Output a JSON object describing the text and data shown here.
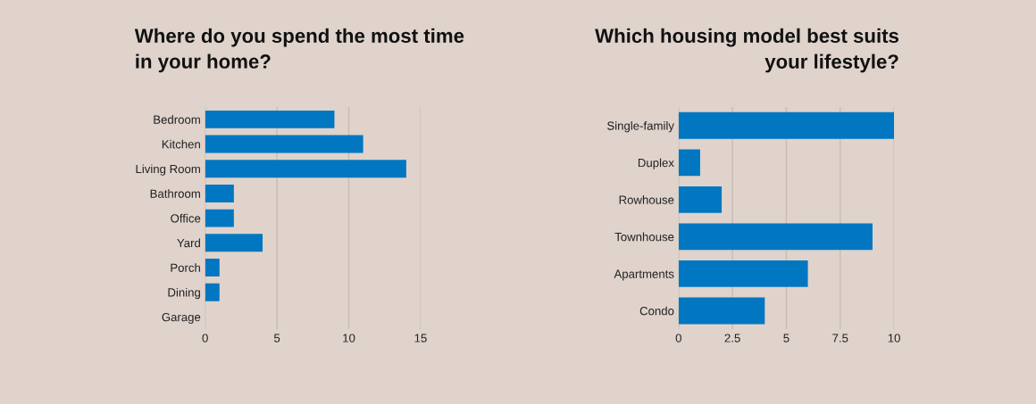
{
  "chart_data": [
    {
      "type": "bar",
      "orientation": "horizontal",
      "title": "Where do you spend the most time\nin your home?",
      "categories": [
        "Bedroom",
        "Kitchen",
        "Living Room",
        "Bathroom",
        "Office",
        "Yard",
        "Porch",
        "Dining",
        "Garage"
      ],
      "values": [
        9,
        11,
        14,
        2,
        2,
        4,
        1,
        1,
        0
      ],
      "color": "#0077c0",
      "xlim": [
        0,
        15
      ],
      "xticks": [
        0,
        5,
        10,
        15
      ],
      "grid": "x",
      "legend": false
    },
    {
      "type": "bar",
      "orientation": "horizontal",
      "title": "Which housing model best suits\nyour lifestyle?",
      "categories": [
        "Single-family",
        "Duplex",
        "Rowhouse",
        "Townhouse",
        "Apartments",
        "Condo"
      ],
      "values": [
        10,
        1,
        2,
        9,
        6,
        4
      ],
      "color": "#0077c0",
      "xlim": [
        0,
        10
      ],
      "xticks": [
        0,
        2.5,
        5,
        7.5,
        10
      ],
      "grid": "x",
      "legend": false
    }
  ]
}
